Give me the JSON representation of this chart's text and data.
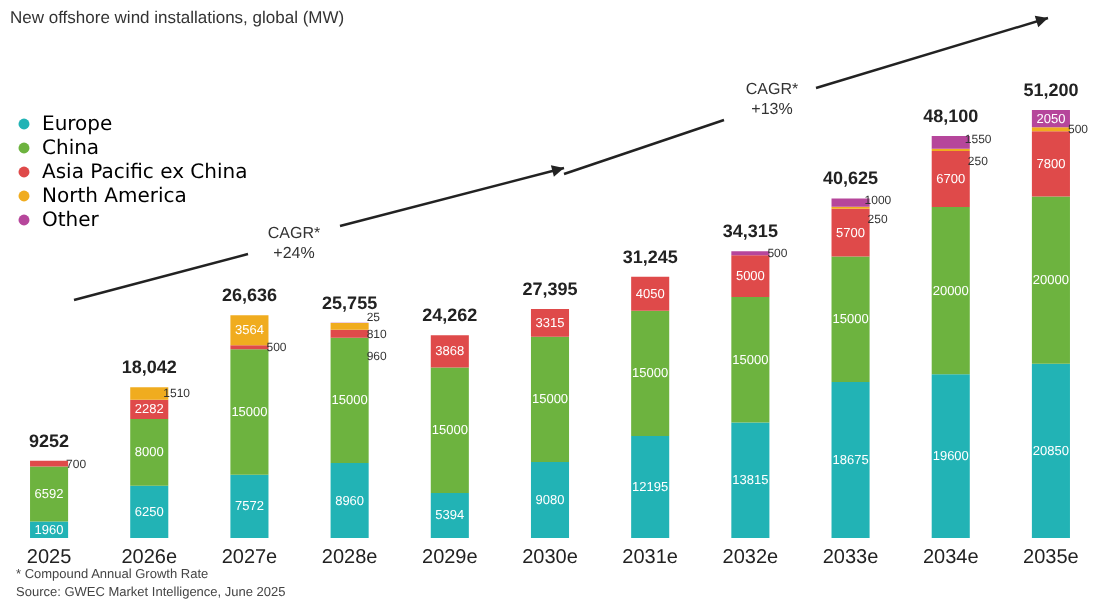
{
  "chart_data": {
    "type": "bar",
    "title": "New offshore wind installations, global (MW)",
    "stacked": true,
    "data_labels": true,
    "legend": "top left",
    "categories": [
      "2025",
      "2026e",
      "2027e",
      "2028e",
      "2029e",
      "2030e",
      "2031e",
      "2032e",
      "2033e",
      "2034e",
      "2035e"
    ],
    "series": [
      {
        "name": "Europe",
        "color": "#22b3b5",
        "values": [
          1960,
          6250,
          7572,
          8960,
          5394,
          9080,
          12195,
          13815,
          18675,
          19600,
          20850
        ]
      },
      {
        "name": "China",
        "color": "#6db33f",
        "values": [
          6592,
          8000,
          15000,
          15000,
          15000,
          15000,
          15000,
          15000,
          15000,
          20000,
          20000
        ]
      },
      {
        "name": "Asia Pacific ex China",
        "color": "#df4a4a",
        "values": [
          700,
          2282,
          500,
          960,
          3868,
          3315,
          4050,
          5000,
          5700,
          6700,
          7800
        ]
      },
      {
        "name": "North America",
        "color": "#f0ac1f",
        "values": [
          null,
          1510,
          3564,
          810,
          null,
          null,
          null,
          null,
          250,
          250,
          500
        ]
      },
      {
        "name": "Other",
        "color": "#b6469b",
        "values": [
          null,
          null,
          null,
          25,
          null,
          null,
          null,
          500,
          1000,
          1550,
          2050
        ]
      }
    ],
    "totals": [
      "9252",
      "18,042",
      "26,636",
      "25,755",
      "24,262",
      "27,395",
      "31,245",
      "34,315",
      "40,625",
      "48,100",
      "51,200"
    ],
    "annotations": [
      "CAGR* +24%",
      "CAGR* +13%",
      "* Compound Annual Growth Rate",
      "Source: GWEC Market Intelligence, June 2025"
    ]
  }
}
